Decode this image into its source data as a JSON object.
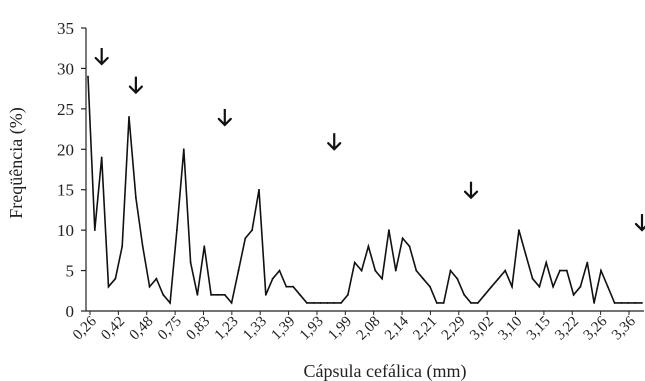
{
  "chart_data": {
    "type": "line",
    "xlabel": "Cápsula cefálica (mm)",
    "ylabel": "Freqüência (%)",
    "ylim": [
      0,
      35
    ],
    "yticks": [
      0,
      5,
      10,
      15,
      20,
      25,
      30,
      35
    ],
    "grid": false,
    "x_tick_labels": [
      "0,26",
      "0,42",
      "0,48",
      "0,75",
      "0,83",
      "1,23",
      "1,33",
      "1,39",
      "1,93",
      "1,99",
      "2,08",
      "2,14",
      "2,21",
      "2,29",
      "3,02",
      "3,10",
      "3,15",
      "3,22",
      "3,26",
      "3,36"
    ],
    "series": [
      {
        "values": [
          29,
          10,
          19,
          3,
          4,
          8,
          24,
          14,
          8,
          3,
          4,
          2,
          1,
          10,
          20,
          6,
          2,
          8,
          2,
          2,
          2,
          1,
          5,
          9,
          10,
          15,
          2,
          4,
          5,
          3,
          3,
          2,
          1,
          1,
          1,
          1,
          1,
          1,
          2,
          6,
          5,
          8,
          5,
          4,
          10,
          5,
          9,
          8,
          5,
          4,
          3,
          1,
          1,
          5,
          4,
          2,
          1,
          1,
          2,
          3,
          4,
          5,
          3,
          10,
          7,
          4,
          3,
          6,
          3,
          5,
          5,
          2,
          3,
          6,
          1,
          5,
          3,
          1,
          1,
          1,
          1,
          1
        ]
      }
    ],
    "arrows_at_index": [
      2,
      7,
      20,
      36,
      56,
      82
    ]
  }
}
